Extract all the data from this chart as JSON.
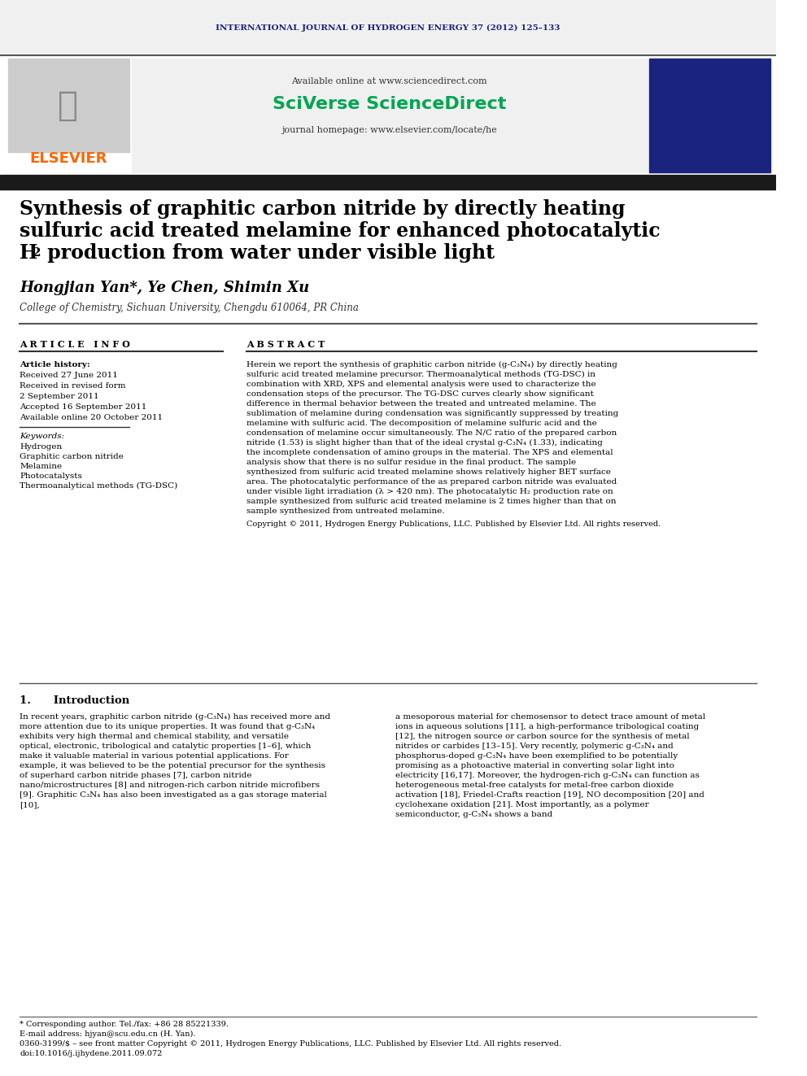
{
  "journal_header": "INTERNATIONAL JOURNAL OF HYDROGEN ENERGY 37 (2012) 125–133",
  "journal_header_color": "#1a237e",
  "available_online": "Available online at www.sciencedirect.com",
  "sciverse_text": "SciVerse ScienceDirect",
  "journal_homepage": "journal homepage: www.elsevier.com/locate/he",
  "title_line1": "Synthesis of graphitic carbon nitride by directly heating",
  "title_line2": "sulfuric acid treated melamine for enhanced photocatalytic",
  "title_line3": "H₂ production from water under visible light",
  "authors": "Hongjian Yan*, Ye Chen, Shimin Xu",
  "affiliation": "College of Chemistry, Sichuan University, Chengdu 610064, PR China",
  "article_info_header": "A R T I C L E   I N F O",
  "abstract_header": "A B S T R A C T",
  "article_history_label": "Article history:",
  "received1": "Received 27 June 2011",
  "received2": "Received in revised form",
  "received2b": "2 September 2011",
  "accepted": "Accepted 16 September 2011",
  "available_online2": "Available online 20 October 2011",
  "keywords_label": "Keywords:",
  "keywords": [
    "Hydrogen",
    "Graphitic carbon nitride",
    "Melamine",
    "Photocatalysts",
    "Thermoanalytical methods (TG-DSC)"
  ],
  "abstract_text": "Herein we report the synthesis of graphitic carbon nitride (g-C₃N₄) by directly heating sulfuric acid treated melamine precursor. Thermoanalytical methods (TG-DSC) in combination with XRD, XPS and elemental analysis were used to characterize the condensation steps of the precursor. The TG-DSC curves clearly show significant difference in thermal behavior between the treated and untreated melamine. The sublimation of melamine during condensation was significantly suppressed by treating melamine with sulfuric acid. The decomposition of melamine sulfuric acid and the condensation of melamine occur simultaneously. The N/C ratio of the prepared carbon nitride (1.53) is slight higher than that of the ideal crystal g-C₃N₄ (1.33), indicating the incomplete condensation of amino groups in the material. The XPS and elemental analysis show that there is no sulfur residue in the final product. The sample synthesized from sulfuric acid treated melamine shows relatively higher BET surface area. The photocatalytic performance of the as prepared carbon nitride was evaluated under visible light irradiation (λ > 420 nm). The photocatalytic H₂ production rate on sample synthesized from sulfuric acid treated melamine is 2 times higher than that on sample synthesized from untreated melamine.",
  "copyright_text": "Copyright © 2011, Hydrogen Energy Publications, LLC. Published by Elsevier Ltd. All rights reserved.",
  "intro_header": "1.      Introduction",
  "intro_text1": "In recent years, graphitic carbon nitride (g-C₃N₄) has received more and more attention due to its unique properties. It was found that g-C₃N₄ exhibits very high thermal and chemical stability, and versatile optical, electronic, tribological and catalytic properties [1–6], which make it valuable material in various potential applications. For example, it was believed to be the potential precursor for the synthesis of superhard carbon nitride phases [7], carbon nitride nano/microstructures [8] and nitrogen-rich carbon nitride microfibers [9]. Graphitic C₃N₄ has also been investigated as a gas storage material [10],",
  "intro_text2": "a mesoporous material for chemosensor to detect trace amount of metal ions in aqueous solutions [11], a high-performance tribological coating [12], the nitrogen source or carbon source for the synthesis of metal nitrides or carbides [13–15]. Very recently, polymeric g-C₃N₄ and phosphorus-doped g-C₃N₄ have been exemplified to be potentially promising as a photoactive material in converting solar light into electricity [16,17]. Moreover, the hydrogen-rich g-C₃N₄ can function as heterogeneous metal-free catalysts for metal-free carbon dioxide activation [18], Friedel-Crafts reaction [19], NO decomposition [20] and cyclohexane oxidation [21]. Most importantly, as a polymer semiconductor, g-C₃N₄ shows a band",
  "footnote_star": "* Corresponding author. Tel./fax: +86 28 85221339.",
  "footnote_email": "E-mail address: hjyan@scu.edu.cn (H. Yan).",
  "footnote_issn": "0360-3199/$ – see front matter Copyright © 2011, Hydrogen Energy Publications, LLC. Published by Elsevier Ltd. All rights reserved.",
  "footnote_doi": "doi:10.1016/j.ijhydene.2011.09.072",
  "elsevier_color": "#FF6600",
  "sciverse_color": "#00a651",
  "header_bar_color": "#000000",
  "title_bar_color": "#000000",
  "bg_color": "#ffffff",
  "header_bg": "#e8e8e8"
}
